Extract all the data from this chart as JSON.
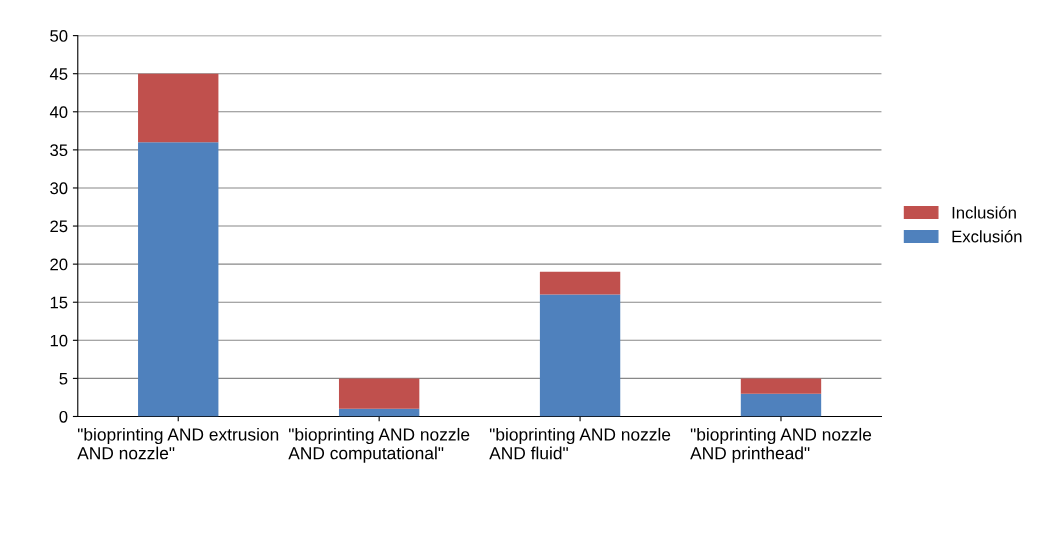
{
  "chart_data": {
    "type": "bar",
    "stacked": true,
    "categories": [
      "\"bioprinting AND extrusion AND nozzle\"",
      "\"bioprinting AND nozzle AND computational\"",
      "\"bioprinting AND nozzle AND fluid\"",
      "\"bioprinting AND nozzle AND printhead\""
    ],
    "series": [
      {
        "name": "Exclusión",
        "color": "#4f81bd",
        "values": [
          36,
          1,
          16,
          3
        ]
      },
      {
        "name": "Inclusión",
        "color": "#c0504d",
        "values": [
          9,
          4,
          3,
          2
        ]
      }
    ],
    "ylim": [
      0,
      50
    ],
    "yticks": [
      0,
      5,
      10,
      15,
      20,
      25,
      30,
      35,
      40,
      45,
      50
    ],
    "grid": "y",
    "legend": "right"
  }
}
